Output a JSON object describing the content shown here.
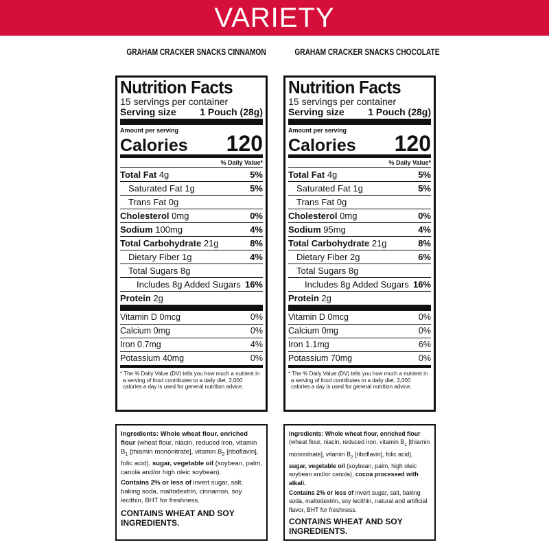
{
  "header": {
    "title": "VARIETY"
  },
  "panels": [
    {
      "product": "GRAHAM CRACKER SNACKS CINNAMON",
      "facts": {
        "title": "Nutrition Facts",
        "servings": "15 servings per container",
        "serving_size_label": "Serving size",
        "serving_size": "1 Pouch (28g)",
        "amount_per_serving": "Amount per serving",
        "calories_label": "Calories",
        "calories": "120",
        "dv_header": "% Daily Value*",
        "nutrients": [
          {
            "name": "Total Fat",
            "amount": "4g",
            "dv": "5%",
            "level": 0
          },
          {
            "name": "Saturated Fat",
            "amount": "1g",
            "dv": "5%",
            "level": 1
          },
          {
            "name": "Trans Fat",
            "amount": "0g",
            "level": 1
          },
          {
            "name": "Cholesterol",
            "amount": "0mg",
            "dv": "0%",
            "level": 0
          },
          {
            "name": "Sodium",
            "amount": "100mg",
            "dv": "4%",
            "level": 0
          },
          {
            "name": "Total Carbohydrate",
            "amount": "21g",
            "dv": "8%",
            "level": 0
          },
          {
            "name": "Dietary Fiber",
            "amount": "1g",
            "dv": "4%",
            "level": 1
          },
          {
            "name": "Total Sugars",
            "amount": "8g",
            "level": 1
          },
          {
            "name": "Includes 8g Added Sugars",
            "dv": "16%",
            "level": 2
          },
          {
            "name": "Protein",
            "amount": "2g",
            "level": 0
          }
        ],
        "vitamins": [
          {
            "name": "Vitamin D 0mcg",
            "dv": "0%"
          },
          {
            "name": "Calcium 0mg",
            "dv": "0%"
          },
          {
            "name": "Iron 0.7mg",
            "dv": "4%"
          },
          {
            "name": "Potassium 40mg",
            "dv": "0%"
          }
        ],
        "footnote": "* The % Daily Value (DV) tells you how much a nutrient in a serving of food contributes to a daily diet. 2,000 calories a day is used for general nutrition advice."
      },
      "ingredients": {
        "paragraphs": [
          [
            {
              "text": "Ingredients: Whole wheat flour, enriched flour",
              "bold": true
            },
            {
              "text": " (wheat flour, niacin, reduced iron, vitamin B"
            },
            {
              "text": "1",
              "sub": true
            },
            {
              "text": " [thiamin mononitrate], vitamin B"
            },
            {
              "text": "2",
              "sub": true
            },
            {
              "text": " [riboflavin], folic acid), "
            },
            {
              "text": "sugar, vegetable oil",
              "bold": true
            },
            {
              "text": " (soybean, palm, canola and/or high oleic soybean)."
            }
          ],
          [
            {
              "text": "Contains 2% or less of",
              "bold": true
            },
            {
              "text": " invert sugar, salt, baking soda, maltodextrin, cinnamon, soy lecithin, BHT for freshness."
            }
          ],
          [
            {
              "text": "CONTAINS WHEAT AND SOY INGREDIENTS.",
              "bold": true
            }
          ]
        ]
      }
    },
    {
      "product": "GRAHAM CRACKER SNACKS CHOCOLATE",
      "facts": {
        "title": "Nutrition Facts",
        "servings": "15 servings per container",
        "serving_size_label": "Serving size",
        "serving_size": "1 Pouch (28g)",
        "amount_per_serving": "Amount per serving",
        "calories_label": "Calories",
        "calories": "120",
        "dv_header": "% Daily Value*",
        "nutrients": [
          {
            "name": "Total Fat",
            "amount": "4g",
            "dv": "5%",
            "level": 0
          },
          {
            "name": "Saturated Fat",
            "amount": "1g",
            "dv": "5%",
            "level": 1
          },
          {
            "name": "Trans Fat",
            "amount": "0g",
            "level": 1
          },
          {
            "name": "Cholesterol",
            "amount": "0mg",
            "dv": "0%",
            "level": 0
          },
          {
            "name": "Sodium",
            "amount": "95mg",
            "dv": "4%",
            "level": 0
          },
          {
            "name": "Total Carbohydrate",
            "amount": "21g",
            "dv": "8%",
            "level": 0
          },
          {
            "name": "Dietary Fiber",
            "amount": "2g",
            "dv": "6%",
            "level": 1
          },
          {
            "name": "Total Sugars",
            "amount": "8g",
            "level": 1
          },
          {
            "name": "Includes 8g Added Sugars",
            "dv": "16%",
            "level": 2
          },
          {
            "name": "Protein",
            "amount": "2g",
            "level": 0
          }
        ],
        "vitamins": [
          {
            "name": "Vitamin D 0mcg",
            "dv": "0%"
          },
          {
            "name": "Calcium 0mg",
            "dv": "0%"
          },
          {
            "name": "Iron 1.1mg",
            "dv": "6%"
          },
          {
            "name": "Potassium 70mg",
            "dv": "0%"
          }
        ],
        "footnote": "* The % Daily Value (DV) tells you how much a nutrient in a serving of food contributes to a daily diet. 2,000 calories a day is used for general nutrition advice."
      },
      "ingredients": {
        "paragraphs": [
          [
            {
              "text": "Ingredients: Whole wheat flour, enriched flour",
              "bold": true
            },
            {
              "text": " (wheat flour, niacin, reduced iron, vitamin B"
            },
            {
              "text": "1",
              "sub": true
            },
            {
              "text": " [thiamin mononitrate], vitamin B"
            },
            {
              "text": "2",
              "sub": true
            },
            {
              "text": " [riboflavin], folic acid), "
            },
            {
              "text": "sugar, vegetable oil",
              "bold": true
            },
            {
              "text": " (soybean, palm, high oleic soybean and/or canola), "
            },
            {
              "text": "cocoa processed with alkali.",
              "bold": true
            }
          ],
          [
            {
              "text": "Contains 2% or less of",
              "bold": true
            },
            {
              "text": " invert sugar, salt, baking soda, maltodextrin, soy lecithin, natural and artificial flavor, BHT for freshness."
            }
          ],
          [
            {
              "text": "CONTAINS WHEAT AND SOY INGREDIENTS.",
              "bold": true
            }
          ]
        ]
      }
    }
  ]
}
